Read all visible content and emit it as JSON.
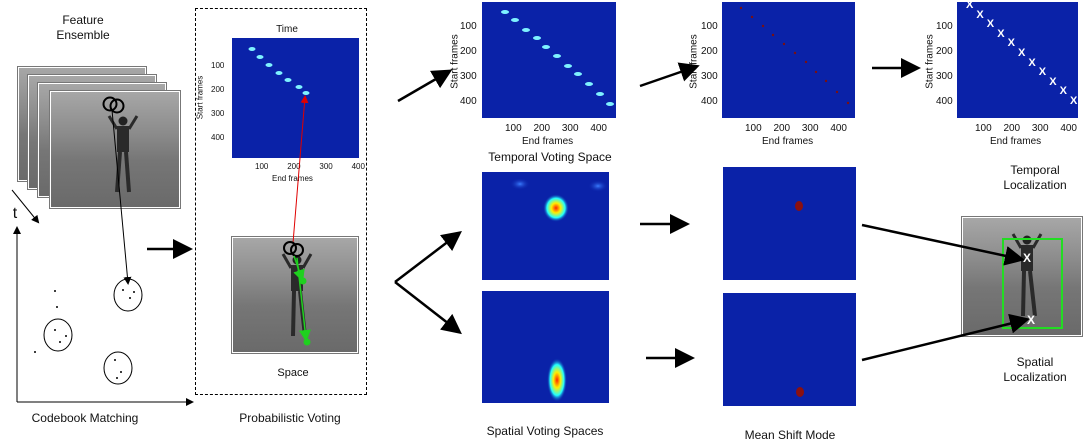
{
  "labels": {
    "feature_ensemble": "Feature\nEnsemble",
    "t": "t",
    "codebook_matching": "Codebook Matching",
    "time": "Time",
    "space": "Space",
    "probabilistic_voting": "Probabilistic Voting",
    "temporal_voting_space": "Temporal Voting Space",
    "spatial_voting_spaces": "Spatial Voting Spaces",
    "mean_shift_mode": "Mean Shift Mode",
    "temporal_localization": "Temporal\nLocalization",
    "spatial_localization": "Spatial\nLocalization"
  },
  "axes": {
    "start_frames": "Start frames",
    "end_frames": "End frames",
    "y_ticks": [
      "100",
      "200",
      "300",
      "400"
    ],
    "x_ticks": [
      "100",
      "200",
      "300",
      "400"
    ]
  },
  "marks": {
    "x": "X"
  },
  "colors": {
    "heatmap_bg": "#0a22a8",
    "vote_arrow": "#e00000",
    "match_arrow": "#1fd01f",
    "localization_box": "#22dd22"
  }
}
